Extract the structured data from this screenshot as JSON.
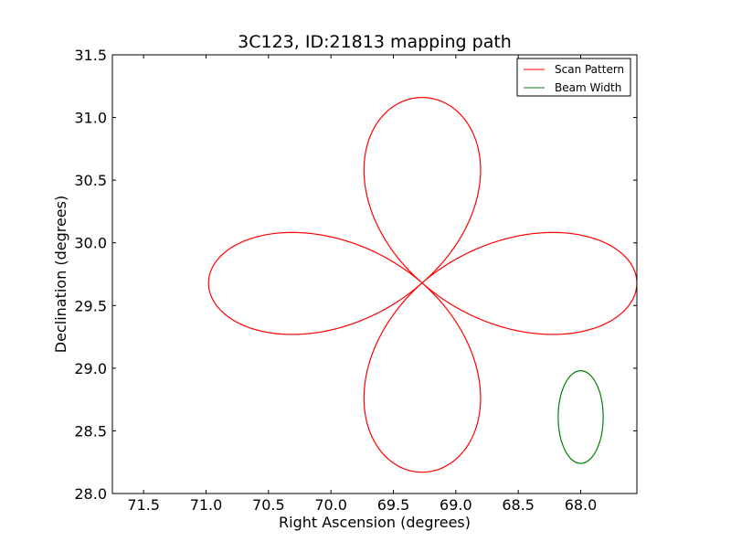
{
  "chart_data": {
    "type": "line",
    "title": "3C123, ID:21813 mapping path",
    "xlabel": "Right Ascension (degrees)",
    "ylabel": "Declination (degrees)",
    "xlim": [
      71.75,
      67.55
    ],
    "ylim": [
      28.0,
      31.5
    ],
    "x_inverted": true,
    "x_ticks": [
      71.5,
      71.0,
      70.5,
      70.0,
      69.5,
      69.0,
      68.5,
      68.0
    ],
    "x_tick_labels": [
      "71.5",
      "71.0",
      "70.5",
      "70.0",
      "69.5",
      "69.0",
      "68.5",
      "68.0"
    ],
    "y_ticks": [
      28.0,
      28.5,
      29.0,
      29.5,
      30.0,
      30.5,
      31.0,
      31.5
    ],
    "y_tick_labels": [
      "28.0",
      "28.5",
      "29.0",
      "29.5",
      "30.0",
      "30.5",
      "31.0",
      "31.5"
    ],
    "grid": false,
    "legend_position": "top-right",
    "series": [
      {
        "name": "Scan Pattern",
        "color": "#ff0000",
        "kind": "four-petal rose curve",
        "center": [
          69.27,
          29.68
        ],
        "petals": [
          {
            "direction": "north",
            "tip": [
              69.27,
              31.16
            ],
            "width_ra": [
              69.75,
              68.79
            ]
          },
          {
            "direction": "south",
            "tip": [
              69.27,
              28.17
            ],
            "width_ra": [
              69.75,
              68.79
            ]
          },
          {
            "direction": "east",
            "tip": [
              70.98,
              29.66
            ],
            "width_dec": [
              29.26,
              30.07
            ]
          },
          {
            "direction": "west",
            "tip": [
              67.55,
              29.66
            ],
            "width_dec": [
              29.26,
              30.07
            ]
          }
        ]
      },
      {
        "name": "Beam Width",
        "color": "#008000",
        "kind": "circle",
        "center": [
          68.0,
          28.61
        ],
        "radius_ra": 0.18,
        "radius_dec": 0.37
      }
    ]
  }
}
